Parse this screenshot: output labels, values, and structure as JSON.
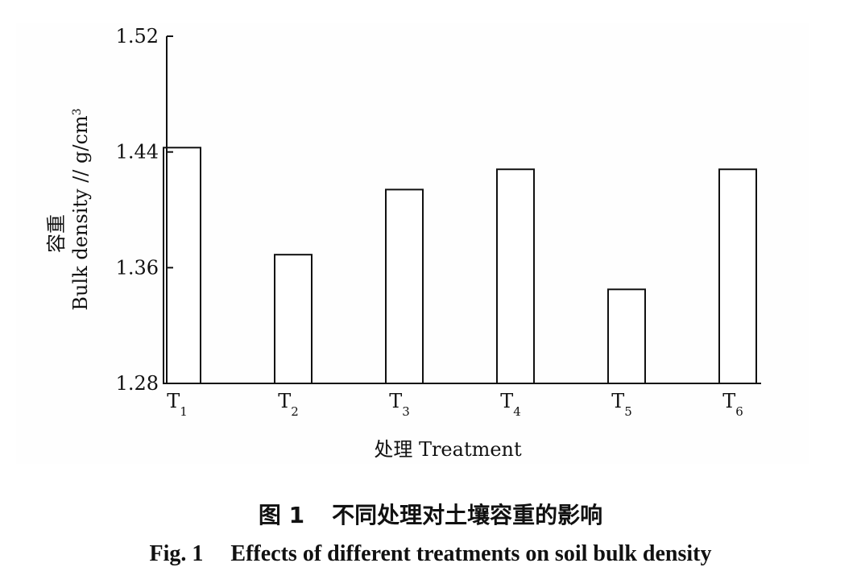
{
  "chart_data": {
    "type": "bar",
    "categories": [
      {
        "main": "T",
        "sub": "1"
      },
      {
        "main": "T",
        "sub": "2"
      },
      {
        "main": "T",
        "sub": "3"
      },
      {
        "main": "T",
        "sub": "4"
      },
      {
        "main": "T",
        "sub": "5"
      },
      {
        "main": "T",
        "sub": "6"
      }
    ],
    "values": [
      1.443,
      1.369,
      1.414,
      1.428,
      1.345,
      1.428
    ],
    "ylim": [
      1.28,
      1.52
    ],
    "yticks": [
      "1.28",
      "1.36",
      "1.44",
      "1.52"
    ],
    "xlabel": "处理 Treatment",
    "ylabel_cn": "容重",
    "ylabel_en": "Bulk density // g/cm",
    "ylabel_sup": "3",
    "grid": false
  },
  "caption": {
    "cn_number": "图 1",
    "cn_text": "不同处理对土壤容重的影响",
    "en_number": "Fig. 1",
    "en_text": "Effects of different treatments on soil bulk density"
  }
}
